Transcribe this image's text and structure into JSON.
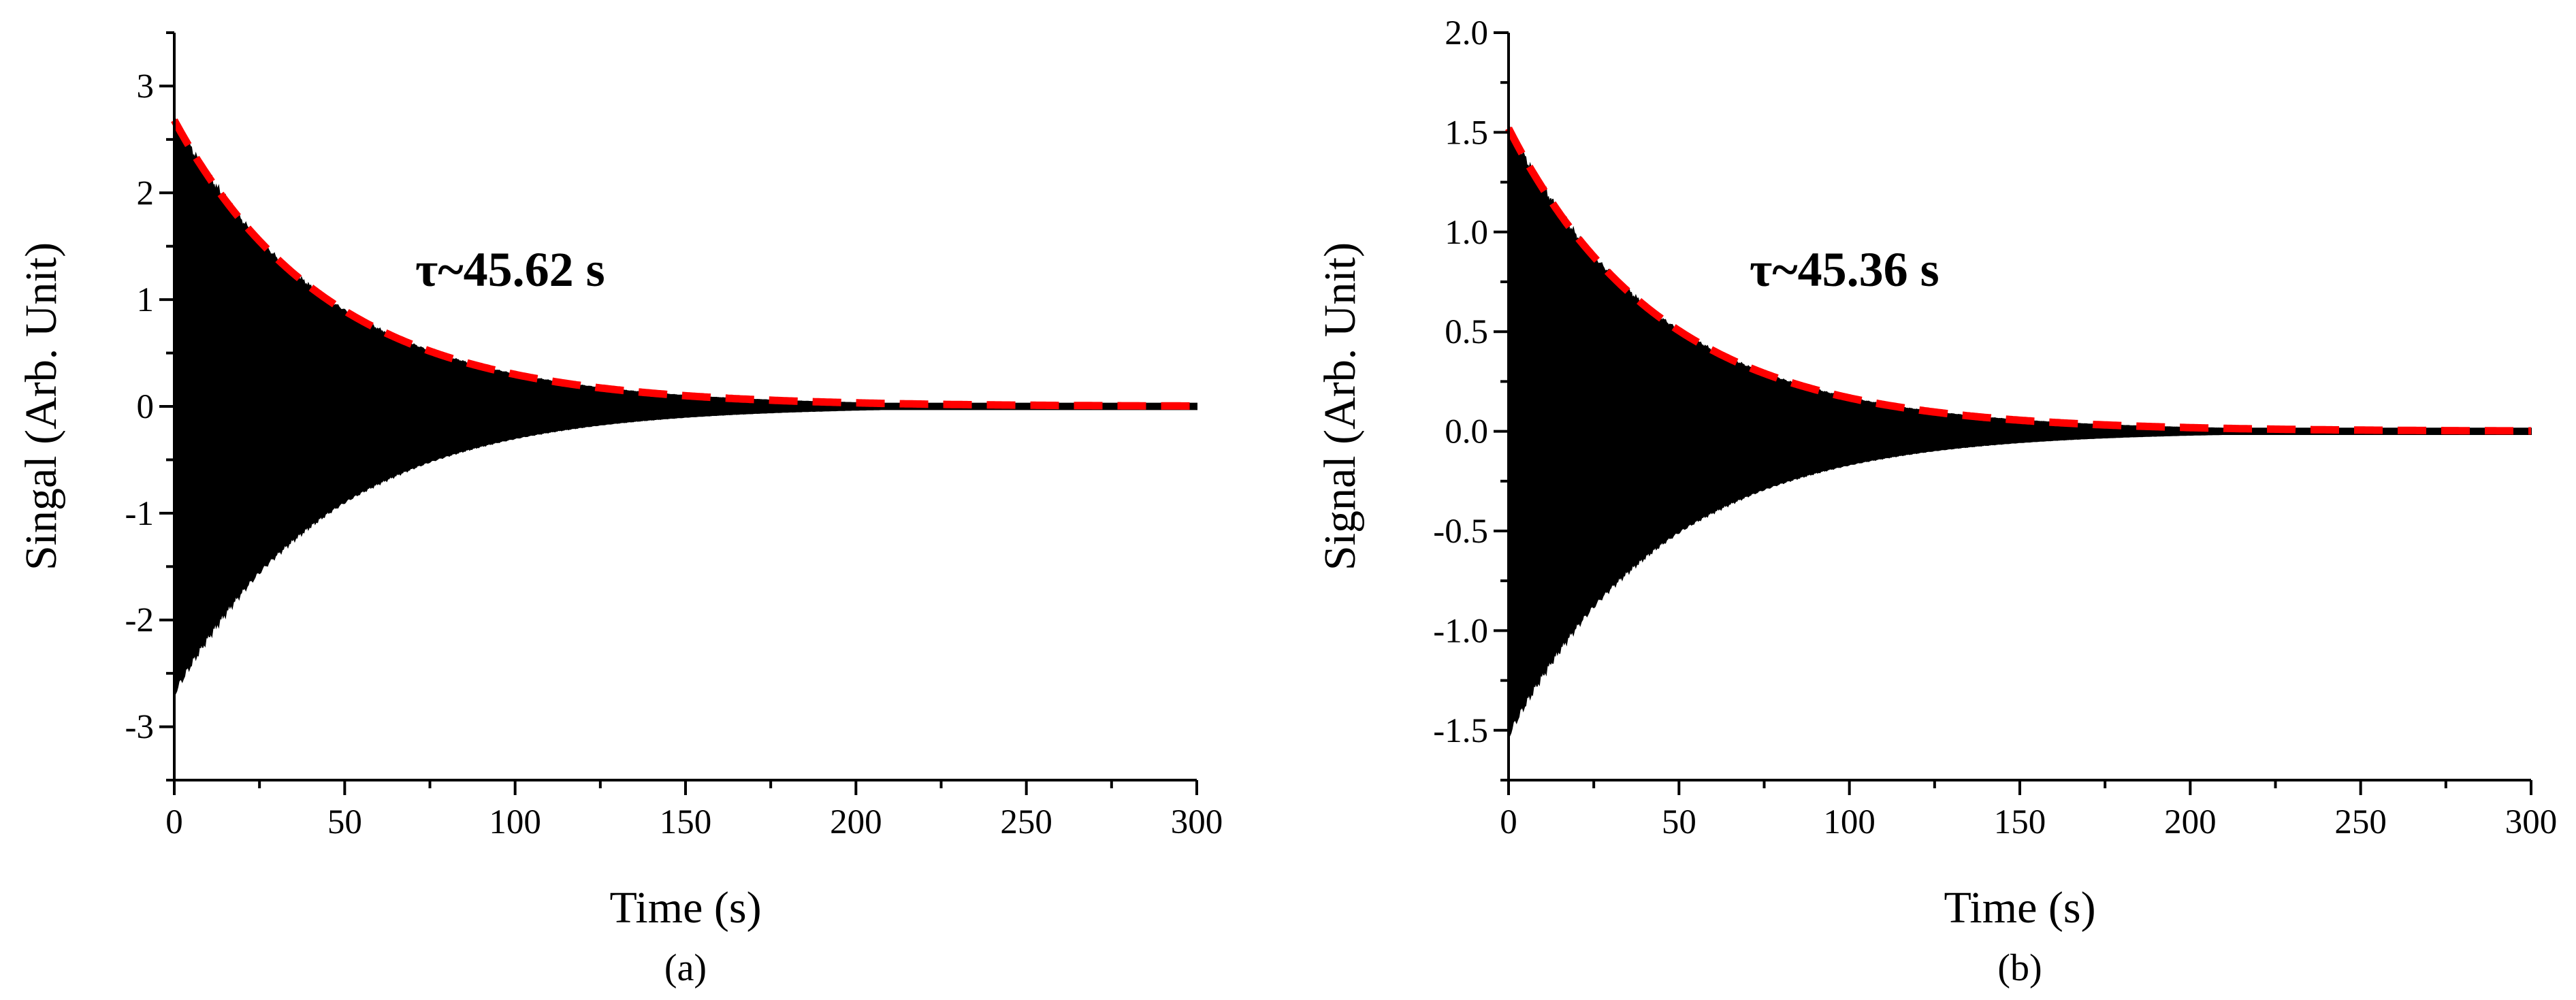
{
  "chart_data": [
    {
      "type": "line",
      "panel_label": "(a)",
      "xlabel": "Time (s)",
      "ylabel": "Singal (Arb. Unit)",
      "xlim": [
        0,
        300
      ],
      "ylim": [
        -3.5,
        3.5
      ],
      "xticks": [
        0,
        50,
        100,
        150,
        200,
        250,
        300
      ],
      "yticks": [
        -3,
        -2,
        -1,
        0,
        1,
        2,
        3
      ],
      "xtick_labels": [
        "0",
        "50",
        "100",
        "150",
        "200",
        "250",
        "300"
      ],
      "ytick_labels": [
        "-3",
        "-2",
        "-1",
        "0",
        "1",
        "2",
        "3"
      ],
      "grid": false,
      "annotation": "τ~45.62 s",
      "series": [
        {
          "kind": "oscillating-decay-signal",
          "color": "#000000",
          "amplitude0": 2.68,
          "tau": 45.62,
          "t_range": [
            0,
            300
          ]
        },
        {
          "kind": "exponential-envelope-fit",
          "color": "#ff0000",
          "style": "dashed",
          "amplitude0": 2.68,
          "tau": 45.62,
          "t_range": [
            0,
            300
          ]
        }
      ]
    },
    {
      "type": "line",
      "panel_label": "(b)",
      "xlabel": "Time (s)",
      "ylabel": "Signal (Arb. Unit)",
      "xlim": [
        0,
        300
      ],
      "ylim": [
        -1.75,
        2.0
      ],
      "xticks": [
        0,
        50,
        100,
        150,
        200,
        250,
        300
      ],
      "yticks": [
        -1.5,
        -1.0,
        -0.5,
        0.0,
        0.5,
        1.0,
        1.5,
        2.0
      ],
      "xtick_labels": [
        "0",
        "50",
        "100",
        "150",
        "200",
        "250",
        "300"
      ],
      "ytick_labels": [
        "-1.5",
        "-1.0",
        "-0.5",
        "0.0",
        "0.5",
        "1.0",
        "1.5",
        "2.0"
      ],
      "grid": false,
      "annotation": "τ~45.36 s",
      "series": [
        {
          "kind": "oscillating-decay-signal",
          "color": "#000000",
          "amplitude0": 1.52,
          "tau": 45.36,
          "t_range": [
            0,
            300
          ]
        },
        {
          "kind": "exponential-envelope-fit",
          "color": "#ff0000",
          "style": "dashed",
          "amplitude0": 1.52,
          "tau": 45.36,
          "t_range": [
            0,
            300
          ]
        }
      ]
    }
  ]
}
